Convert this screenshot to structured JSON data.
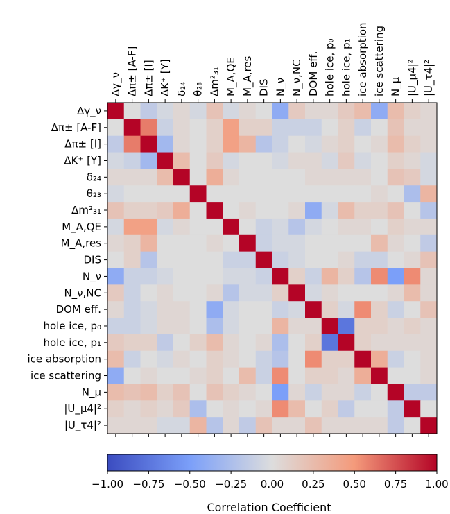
{
  "chart_data": {
    "type": "heatmap",
    "labels": [
      "Δγ_ν",
      "Δπ± [A-F]",
      "Δπ± [I]",
      "ΔK⁺ [Y]",
      "δ₂₄",
      "θ₂₃",
      "Δm²₃₁",
      "M_A,QE",
      "M_A,res",
      "DIS",
      "N_ν",
      "N_ν,NC",
      "DOM eff.",
      "hole ice, p₀",
      "hole ice, p₁",
      "ice absorption",
      "ice scattering",
      "N_μ",
      "|U_μ4|²",
      "|U_τ4|²"
    ],
    "matrix": [
      [
        1.0,
        0.0,
        -0.15,
        -0.05,
        0.05,
        -0.05,
        0.2,
        -0.05,
        0.05,
        0.0,
        -0.4,
        0.15,
        0.05,
        0.05,
        0.15,
        0.25,
        -0.4,
        0.25,
        0.1,
        0.05
      ],
      [
        0.0,
        1.0,
        0.6,
        -0.1,
        0.05,
        0.0,
        0.1,
        0.45,
        0.1,
        0.1,
        -0.1,
        -0.1,
        -0.1,
        0.0,
        0.1,
        -0.1,
        0.0,
        0.2,
        0.05,
        0.05
      ],
      [
        -0.15,
        0.6,
        1.0,
        -0.3,
        0.05,
        0.0,
        0.1,
        0.45,
        0.3,
        -0.2,
        -0.1,
        0.0,
        -0.05,
        0.05,
        0.1,
        0.0,
        0.05,
        0.25,
        0.1,
        0.05
      ],
      [
        -0.05,
        -0.1,
        -0.3,
        1.0,
        0.25,
        0.0,
        0.15,
        -0.05,
        0.0,
        0.0,
        -0.05,
        0.05,
        0.05,
        -0.05,
        0.15,
        -0.05,
        0.0,
        0.1,
        0.05,
        -0.05
      ],
      [
        0.05,
        0.05,
        0.05,
        0.25,
        1.0,
        0.0,
        0.35,
        0.05,
        0.0,
        0.0,
        0.0,
        0.0,
        0.05,
        0.05,
        0.05,
        0.05,
        0.0,
        0.2,
        0.15,
        -0.05
      ],
      [
        -0.05,
        0.0,
        0.0,
        0.0,
        0.0,
        1.0,
        0.0,
        0.0,
        0.0,
        0.0,
        0.0,
        0.0,
        0.0,
        0.0,
        0.0,
        0.0,
        0.05,
        0.0,
        -0.25,
        0.3
      ],
      [
        0.2,
        0.1,
        0.1,
        0.15,
        0.35,
        0.0,
        1.0,
        0.0,
        0.05,
        0.0,
        0.0,
        0.05,
        -0.4,
        -0.05,
        0.25,
        0.1,
        0.1,
        0.2,
        0.0,
        -0.2
      ],
      [
        -0.05,
        0.45,
        0.45,
        -0.05,
        0.05,
        0.0,
        0.0,
        1.0,
        0.0,
        -0.1,
        -0.05,
        -0.2,
        -0.05,
        0.0,
        0.05,
        0.05,
        0.0,
        0.1,
        0.05,
        0.05
      ],
      [
        0.05,
        0.1,
        0.3,
        0.0,
        0.0,
        0.0,
        0.05,
        0.0,
        1.0,
        -0.1,
        -0.05,
        -0.05,
        0.0,
        0.0,
        0.0,
        0.0,
        0.25,
        0.05,
        0.0,
        -0.15
      ],
      [
        0.0,
        0.1,
        -0.2,
        0.0,
        0.0,
        0.0,
        0.0,
        -0.1,
        -0.1,
        1.0,
        -0.1,
        -0.05,
        0.0,
        0.0,
        0.05,
        -0.1,
        -0.1,
        0.0,
        0.05,
        0.2
      ],
      [
        -0.4,
        -0.1,
        -0.1,
        -0.05,
        0.0,
        0.0,
        0.0,
        -0.05,
        -0.05,
        -0.1,
        1.0,
        0.1,
        -0.1,
        0.3,
        0.1,
        -0.2,
        0.55,
        -0.5,
        0.55,
        0.05
      ],
      [
        0.15,
        -0.1,
        0.0,
        0.05,
        0.0,
        0.0,
        0.05,
        -0.2,
        -0.05,
        -0.05,
        0.1,
        1.0,
        -0.05,
        0.05,
        0.0,
        0.0,
        0.0,
        0.05,
        0.25,
        0.05
      ],
      [
        0.05,
        -0.1,
        -0.05,
        0.05,
        0.05,
        0.0,
        -0.4,
        -0.05,
        0.0,
        0.0,
        -0.1,
        -0.05,
        1.0,
        0.1,
        -0.05,
        0.55,
        0.1,
        -0.1,
        0.0,
        0.2
      ],
      [
        -0.1,
        -0.1,
        -0.05,
        0.05,
        0.05,
        0.0,
        -0.25,
        -0.05,
        0.0,
        0.0,
        0.3,
        0.05,
        0.05,
        1.0,
        -0.75,
        0.1,
        0.1,
        0.05,
        0.1,
        0.05
      ],
      [
        0.15,
        0.1,
        0.1,
        -0.15,
        0.0,
        0.1,
        0.25,
        0.05,
        0.0,
        0.05,
        -0.25,
        0.0,
        0.1,
        -0.75,
        1.0,
        0.1,
        0.05,
        0.05,
        0.05,
        0.05
      ],
      [
        0.25,
        -0.1,
        0.0,
        -0.05,
        0.05,
        0.0,
        0.1,
        0.05,
        0.0,
        -0.1,
        -0.2,
        0.0,
        0.55,
        0.1,
        0.1,
        1.0,
        0.35,
        -0.1,
        0.0,
        0.05
      ],
      [
        -0.4,
        0.0,
        0.05,
        0.0,
        0.0,
        0.05,
        0.1,
        0.0,
        0.25,
        -0.1,
        0.55,
        0.0,
        0.1,
        0.1,
        0.05,
        0.35,
        1.0,
        0.0,
        0.0,
        0.05
      ],
      [
        0.25,
        0.2,
        0.25,
        0.1,
        0.2,
        0.0,
        0.2,
        0.1,
        0.05,
        0.0,
        -0.5,
        0.05,
        -0.1,
        0.05,
        0.05,
        -0.1,
        0.0,
        1.0,
        -0.15,
        -0.15
      ],
      [
        0.1,
        0.05,
        0.1,
        0.05,
        0.15,
        -0.25,
        0.0,
        0.05,
        0.0,
        0.05,
        0.55,
        0.25,
        0.0,
        0.1,
        -0.15,
        0.0,
        0.0,
        -0.15,
        1.0,
        0.0
      ],
      [
        0.05,
        0.05,
        0.05,
        -0.05,
        -0.05,
        0.3,
        -0.2,
        0.05,
        -0.15,
        0.2,
        0.05,
        0.05,
        0.2,
        0.05,
        0.05,
        0.05,
        0.05,
        -0.15,
        0.0,
        1.0
      ]
    ],
    "colormap": "coolwarm",
    "vmin": -1.0,
    "vmax": 1.0,
    "colorbar_ticks": [
      "−1.00",
      "−0.75",
      "−0.50",
      "−0.25",
      "0.00",
      "0.25",
      "0.50",
      "0.75",
      "1.00"
    ],
    "colorbar_label": "Correlation Coefficient"
  }
}
